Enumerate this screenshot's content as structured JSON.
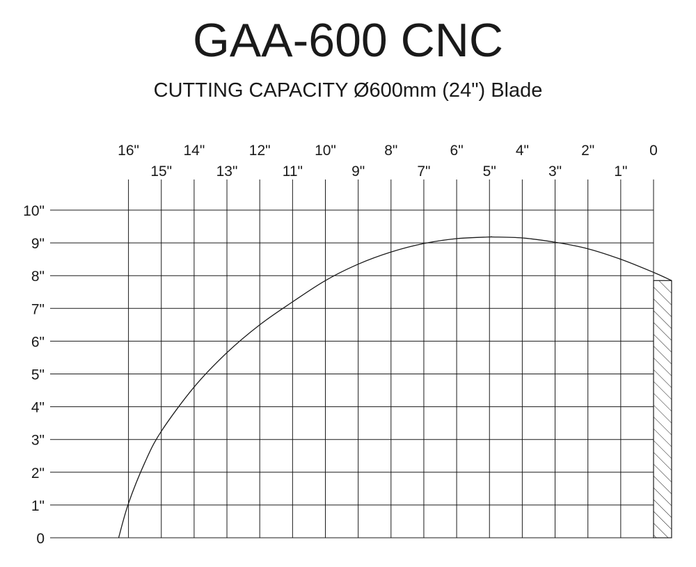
{
  "title": "GAA-600 CNC",
  "subtitle": "CUTTING CAPACITY Ø600mm (24\") Blade",
  "chart_data": {
    "type": "line",
    "x_ticks_row1": [
      "16\"",
      "14\"",
      "12\"",
      "10\"",
      "8\"",
      "6\"",
      "4\"",
      "2\"",
      "0"
    ],
    "x_ticks_row2": [
      "15\"",
      "13\"",
      "11\"",
      "9\"",
      "7\"",
      "5\"",
      "3\"",
      "1\""
    ],
    "y_ticks": [
      "0",
      "1\"",
      "2\"",
      "3\"",
      "4\"",
      "5\"",
      "6\"",
      "7\"",
      "8\"",
      "9\"",
      "10\""
    ],
    "x_axis": "reversed",
    "xlim": [
      16,
      0
    ],
    "ylim": [
      0,
      10
    ],
    "grid": true,
    "series": [
      {
        "x": [
          16.3,
          16.0,
          15.5,
          15.0,
          14.0,
          13.0,
          12.0,
          11.0,
          10.0,
          9.0,
          8.0,
          7.0,
          6.0,
          5.0,
          4.9,
          4.0,
          3.0,
          2.0,
          1.0,
          0.0,
          -0.55
        ],
        "y": [
          0.0,
          1.05,
          2.3,
          3.25,
          4.6,
          5.65,
          6.5,
          7.2,
          7.85,
          8.35,
          8.72,
          8.98,
          9.13,
          9.18,
          9.18,
          9.15,
          9.02,
          8.82,
          8.5,
          8.1,
          7.85
        ]
      }
    ],
    "hatched_region": {
      "x": [
        0,
        -0.55
      ],
      "y": [
        0,
        7.85
      ]
    }
  }
}
